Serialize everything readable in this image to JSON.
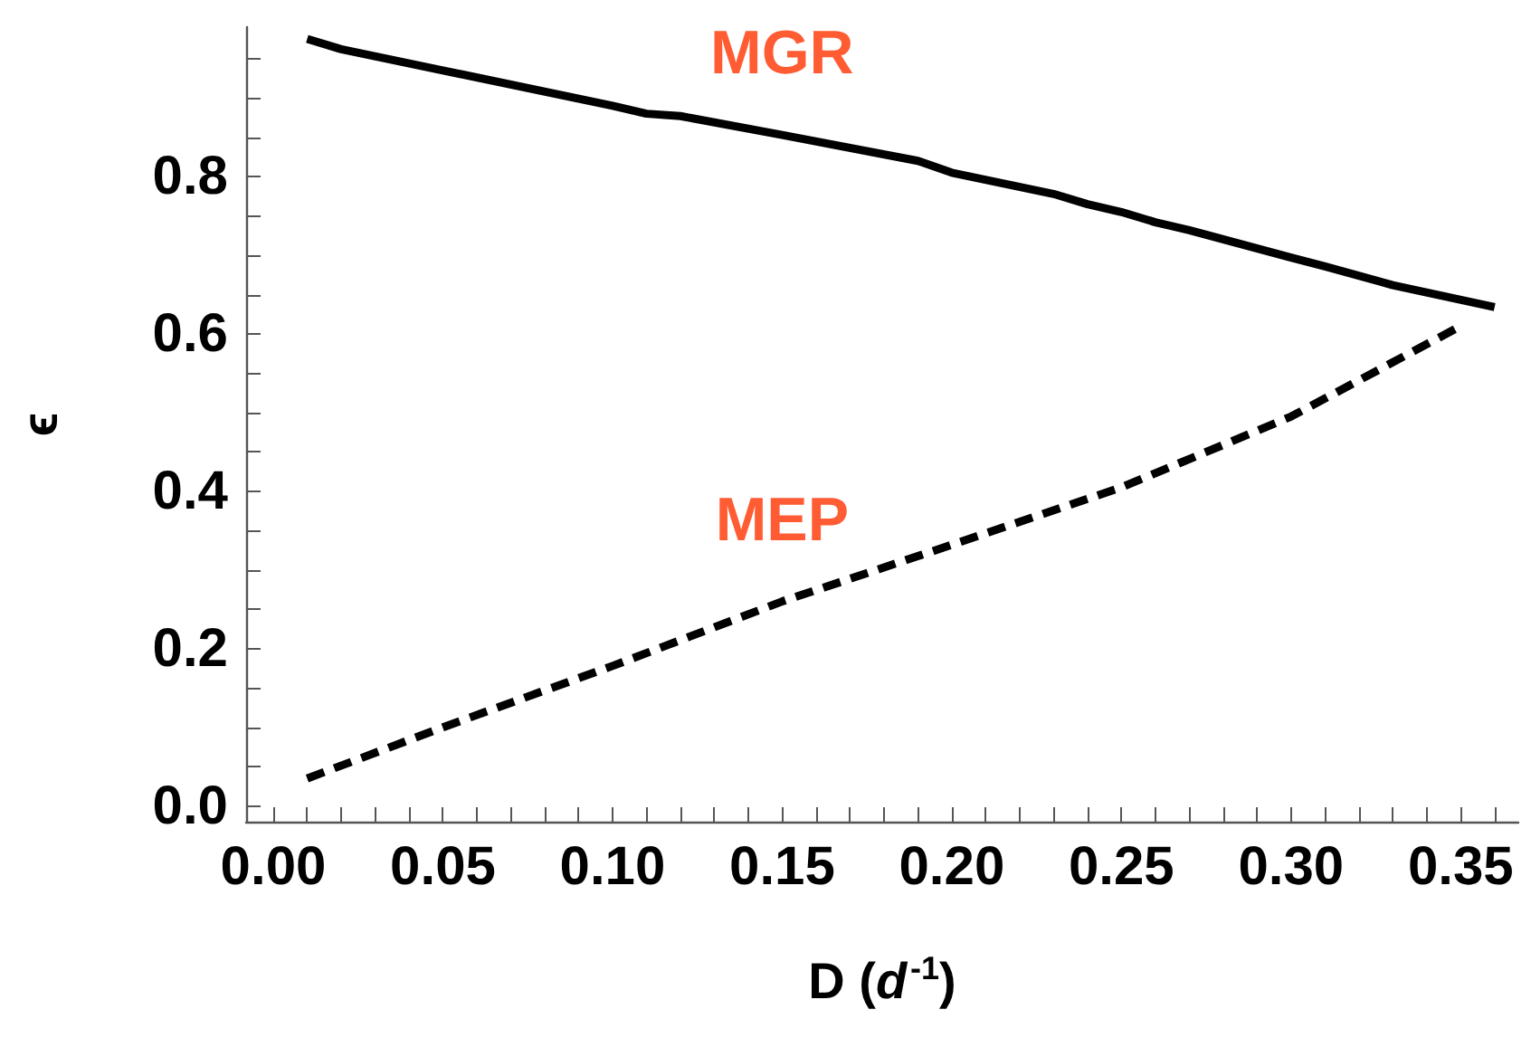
{
  "chart_data": {
    "type": "line",
    "xlabel": "D (d$^{-1}$)",
    "ylabel": "ϵ",
    "xlim": [
      -0.008,
      0.367
    ],
    "ylim": [
      -0.02,
      0.99
    ],
    "xticks": [
      {
        "value": 0,
        "label": "0.00"
      },
      {
        "value": 0.01,
        "label": null
      },
      {
        "value": 0.02,
        "label": null
      },
      {
        "value": 0.03,
        "label": null
      },
      {
        "value": 0.04,
        "label": null
      },
      {
        "value": 0.05,
        "label": "0.05"
      },
      {
        "value": 0.06,
        "label": null
      },
      {
        "value": 0.07,
        "label": null
      },
      {
        "value": 0.08,
        "label": null
      },
      {
        "value": 0.09,
        "label": null
      },
      {
        "value": 0.1,
        "label": "0.10"
      },
      {
        "value": 0.11,
        "label": null
      },
      {
        "value": 0.12,
        "label": null
      },
      {
        "value": 0.13,
        "label": null
      },
      {
        "value": 0.14,
        "label": null
      },
      {
        "value": 0.15,
        "label": "0.15"
      },
      {
        "value": 0.16,
        "label": null
      },
      {
        "value": 0.17,
        "label": null
      },
      {
        "value": 0.18,
        "label": null
      },
      {
        "value": 0.19,
        "label": null
      },
      {
        "value": 0.2,
        "label": "0.20"
      },
      {
        "value": 0.21,
        "label": null
      },
      {
        "value": 0.22,
        "label": null
      },
      {
        "value": 0.23,
        "label": null
      },
      {
        "value": 0.24,
        "label": null
      },
      {
        "value": 0.25,
        "label": "0.25"
      },
      {
        "value": 0.26,
        "label": null
      },
      {
        "value": 0.27,
        "label": null
      },
      {
        "value": 0.28,
        "label": null
      },
      {
        "value": 0.29,
        "label": null
      },
      {
        "value": 0.3,
        "label": "0.30"
      },
      {
        "value": 0.31,
        "label": null
      },
      {
        "value": 0.32,
        "label": null
      },
      {
        "value": 0.33,
        "label": null
      },
      {
        "value": 0.34,
        "label": null
      },
      {
        "value": 0.35,
        "label": "0.35"
      },
      {
        "value": 0.36,
        "label": null
      }
    ],
    "yticks": [
      {
        "value": 0,
        "label": "0.0"
      },
      {
        "value": 0.05,
        "label": null
      },
      {
        "value": 0.1,
        "label": null
      },
      {
        "value": 0.15,
        "label": null
      },
      {
        "value": 0.2,
        "label": "0.2"
      },
      {
        "value": 0.25,
        "label": null
      },
      {
        "value": 0.3,
        "label": null
      },
      {
        "value": 0.35,
        "label": null
      },
      {
        "value": 0.4,
        "label": "0.4"
      },
      {
        "value": 0.45,
        "label": null
      },
      {
        "value": 0.5,
        "label": null
      },
      {
        "value": 0.55,
        "label": null
      },
      {
        "value": 0.6,
        "label": "0.6"
      },
      {
        "value": 0.65,
        "label": null
      },
      {
        "value": 0.7,
        "label": null
      },
      {
        "value": 0.75,
        "label": null
      },
      {
        "value": 0.8,
        "label": "0.8"
      },
      {
        "value": 0.85,
        "label": null
      },
      {
        "value": 0.9,
        "label": null
      },
      {
        "value": 0.95,
        "label": null
      }
    ],
    "grid": false,
    "marker": "none",
    "series": [
      {
        "name": "MGR",
        "color": "#000000",
        "line_style": "solid",
        "x": [
          0.01,
          0.02,
          0.05,
          0.1,
          0.11,
          0.12,
          0.15,
          0.19,
          0.2,
          0.23,
          0.24,
          0.25,
          0.26,
          0.27,
          0.3,
          0.31,
          0.33,
          0.36
        ],
        "values": [
          0.975,
          0.962,
          0.935,
          0.89,
          0.88,
          0.877,
          0.853,
          0.82,
          0.805,
          0.778,
          0.765,
          0.755,
          0.742,
          0.732,
          0.697,
          0.686,
          0.662,
          0.634
        ]
      },
      {
        "name": "MEP",
        "color": "#000000",
        "line_style": "dashed",
        "x": [
          0.01,
          0.05,
          0.1,
          0.15,
          0.2,
          0.25,
          0.3,
          0.35
        ],
        "values": [
          0.035,
          0.1,
          0.178,
          0.26,
          0.332,
          0.405,
          0.495,
          0.61
        ]
      }
    ]
  }
}
